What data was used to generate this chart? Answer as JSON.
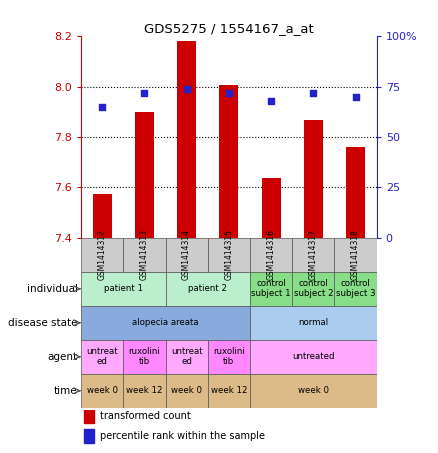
{
  "title": "GDS5275 / 1554167_a_at",
  "samples": [
    "GSM1414312",
    "GSM1414313",
    "GSM1414314",
    "GSM1414315",
    "GSM1414316",
    "GSM1414317",
    "GSM1414318"
  ],
  "transformed_counts": [
    7.574,
    7.898,
    8.18,
    8.005,
    7.637,
    7.868,
    7.762
  ],
  "percentile_ranks": [
    65,
    72,
    74,
    72,
    68,
    72,
    70
  ],
  "ylim_left": [
    7.4,
    8.2
  ],
  "yticks_left": [
    7.4,
    7.6,
    7.8,
    8.0,
    8.2
  ],
  "ylim_right": [
    0,
    100
  ],
  "yticks_right": [
    0,
    25,
    50,
    75,
    100
  ],
  "ytick_labels_right": [
    "0",
    "25",
    "50",
    "75",
    "100%"
  ],
  "bar_color": "#cc0000",
  "dot_color": "#2222cc",
  "left_axis_color": "#cc0000",
  "right_axis_color": "#2222cc",
  "individual_groups": [
    {
      "text": "patient 1",
      "start": 0,
      "end": 2,
      "color": "#bbeecc"
    },
    {
      "text": "patient 2",
      "start": 2,
      "end": 4,
      "color": "#bbeecc"
    },
    {
      "text": "control\nsubject 1",
      "start": 4,
      "end": 5,
      "color": "#88dd88"
    },
    {
      "text": "control\nsubject 2",
      "start": 5,
      "end": 6,
      "color": "#88dd88"
    },
    {
      "text": "control\nsubject 3",
      "start": 6,
      "end": 7,
      "color": "#88dd88"
    }
  ],
  "disease_groups": [
    {
      "text": "alopecia areata",
      "start": 0,
      "end": 4,
      "color": "#88aadd"
    },
    {
      "text": "normal",
      "start": 4,
      "end": 7,
      "color": "#aaccee"
    }
  ],
  "agent_groups": [
    {
      "text": "untreat\ned",
      "start": 0,
      "end": 1,
      "color": "#ffaaff"
    },
    {
      "text": "ruxolini\ntib",
      "start": 1,
      "end": 2,
      "color": "#ff88ff"
    },
    {
      "text": "untreat\ned",
      "start": 2,
      "end": 3,
      "color": "#ffaaff"
    },
    {
      "text": "ruxolini\ntib",
      "start": 3,
      "end": 4,
      "color": "#ff88ff"
    },
    {
      "text": "untreated",
      "start": 4,
      "end": 7,
      "color": "#ffaaff"
    }
  ],
  "time_groups": [
    {
      "text": "week 0",
      "start": 0,
      "end": 1,
      "color": "#ddbb88"
    },
    {
      "text": "week 12",
      "start": 1,
      "end": 2,
      "color": "#ddbb88"
    },
    {
      "text": "week 0",
      "start": 2,
      "end": 3,
      "color": "#ddbb88"
    },
    {
      "text": "week 12",
      "start": 3,
      "end": 4,
      "color": "#ddbb88"
    },
    {
      "text": "week 0",
      "start": 4,
      "end": 7,
      "color": "#ddbb88"
    }
  ],
  "sample_bg": "#cccccc",
  "row_labels": [
    "individual",
    "disease state",
    "agent",
    "time"
  ],
  "legend": [
    {
      "color": "#cc0000",
      "label": "transformed count"
    },
    {
      "color": "#2222cc",
      "label": "percentile rank within the sample"
    }
  ]
}
